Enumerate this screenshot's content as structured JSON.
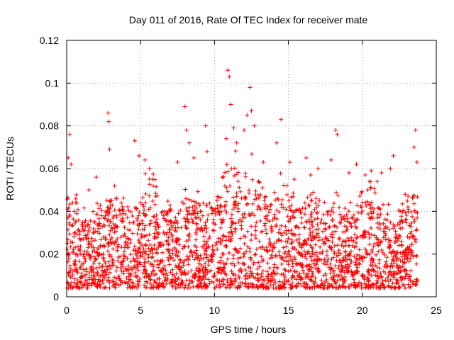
{
  "chart_data": {
    "type": "scatter",
    "title": "Day 011 of 2016, Rate Of TEC Index for receiver mate",
    "xlabel": "GPS time / hours",
    "ylabel": "ROTI / TECUs",
    "xlim": [
      0,
      25
    ],
    "ylim": [
      0,
      0.12
    ],
    "x_ticks": [
      "0",
      "5",
      "10",
      "15",
      "20",
      "25"
    ],
    "y_ticks": [
      "0",
      "0.02",
      "0.04",
      "0.06",
      "0.08",
      "0.1",
      "0.12"
    ],
    "grid": true,
    "marker": "plus",
    "color": "#ff0000",
    "series": [
      {
        "x": [
          0.1,
          0.2,
          0.3,
          0.4,
          0.5,
          1.5,
          2.0,
          2.8,
          2.85,
          2.9,
          4.6,
          4.9,
          5.3,
          5.6,
          5.8,
          7.5,
          8.0,
          8.1,
          8.3,
          8.6,
          9.4,
          9.5,
          10.8,
          10.9,
          11.0,
          11.1,
          11.3,
          11.5,
          12.0,
          12.2,
          12.4,
          12.5,
          12.7,
          13.3,
          14.2,
          14.5,
          15.1,
          15.4,
          16.2,
          16.5,
          17.0,
          17.9,
          18.2,
          18.3,
          19.1,
          19.6,
          20.2,
          20.6,
          21.0,
          21.3,
          21.9,
          22.1,
          22.9,
          23.1,
          23.5,
          23.6,
          23.7
        ],
        "y": [
          0.065,
          0.076,
          0.062,
          0.044,
          0.04,
          0.05,
          0.056,
          0.086,
          0.082,
          0.069,
          0.073,
          0.066,
          0.064,
          0.06,
          0.055,
          0.063,
          0.089,
          0.078,
          0.072,
          0.065,
          0.08,
          0.068,
          0.074,
          0.106,
          0.103,
          0.09,
          0.079,
          0.072,
          0.078,
          0.085,
          0.098,
          0.087,
          0.08,
          0.063,
          0.072,
          0.083,
          0.063,
          0.055,
          0.065,
          0.057,
          0.06,
          0.064,
          0.078,
          0.076,
          0.058,
          0.062,
          0.057,
          0.059,
          0.054,
          0.058,
          0.06,
          0.066,
          0.048,
          0.041,
          0.07,
          0.078,
          0.063
        ]
      }
    ]
  }
}
